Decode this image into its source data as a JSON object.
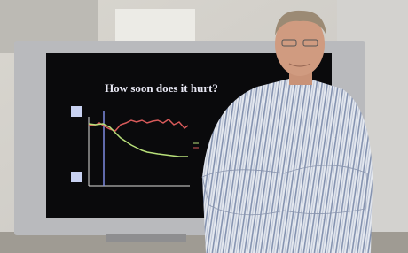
{
  "screen": {
    "title": "How soon does it hurt?"
  }
}
